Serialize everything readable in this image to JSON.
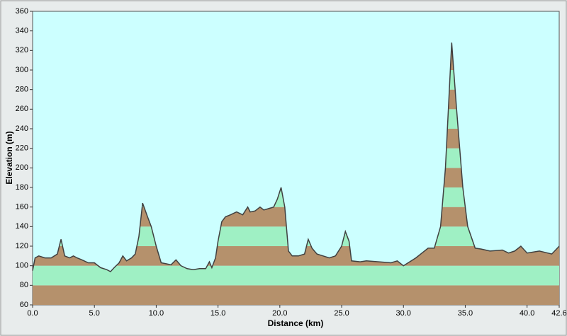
{
  "chart_data": {
    "type": "area",
    "x_label": "Distance  (km)",
    "y_label": "Elevation (m)",
    "x": [
      0.0,
      0.2,
      0.5,
      1.0,
      1.5,
      2.0,
      2.3,
      2.6,
      3.0,
      3.3,
      3.6,
      4.0,
      4.5,
      5.0,
      5.5,
      6.0,
      6.3,
      6.6,
      7.0,
      7.3,
      7.6,
      8.0,
      8.3,
      8.6,
      8.9,
      9.3,
      9.6,
      10.0,
      10.4,
      10.8,
      11.2,
      11.6,
      12.0,
      12.5,
      13.0,
      13.5,
      14.0,
      14.3,
      14.5,
      14.8,
      15.0,
      15.3,
      15.6,
      16.0,
      16.5,
      17.0,
      17.4,
      17.6,
      18.0,
      18.4,
      18.7,
      19.0,
      19.5,
      19.8,
      20.1,
      20.4,
      20.7,
      21.0,
      21.5,
      22.0,
      22.3,
      22.6,
      23.0,
      23.5,
      24.0,
      24.5,
      25.0,
      25.3,
      25.6,
      25.8,
      26.5,
      27.0,
      28.0,
      29.0,
      29.5,
      30.0,
      31.0,
      31.5,
      32.0,
      32.5,
      33.0,
      33.4,
      33.9,
      34.3,
      34.8,
      35.2,
      35.8,
      36.3,
      37.0,
      38.0,
      38.5,
      39.0,
      39.5,
      40.0,
      41.0,
      42.0,
      42.6
    ],
    "y": [
      95,
      108,
      110,
      108,
      108,
      112,
      127,
      110,
      108,
      110,
      108,
      106,
      103,
      103,
      98,
      96,
      94,
      98,
      103,
      110,
      105,
      108,
      112,
      130,
      164,
      150,
      140,
      120,
      103,
      102,
      101,
      106,
      100,
      97,
      96,
      97,
      97,
      104,
      98,
      108,
      125,
      145,
      150,
      152,
      155,
      152,
      160,
      155,
      156,
      160,
      157,
      158,
      160,
      168,
      180,
      160,
      115,
      110,
      110,
      112,
      127,
      118,
      112,
      110,
      108,
      110,
      120,
      135,
      125,
      105,
      104,
      105,
      104,
      103,
      105,
      100,
      108,
      113,
      118,
      118,
      140,
      200,
      328,
      260,
      180,
      140,
      118,
      117,
      115,
      116,
      113,
      115,
      120,
      113,
      115,
      112,
      120
    ],
    "xlim": [
      0,
      42.6
    ],
    "ylim": [
      60,
      360
    ],
    "xticks": [
      {
        "value": 0,
        "label": "0.0"
      },
      {
        "value": 5,
        "label": "5.0"
      },
      {
        "value": 10,
        "label": "10.0"
      },
      {
        "value": 15,
        "label": "15.0"
      },
      {
        "value": 20,
        "label": "20.0"
      },
      {
        "value": 25,
        "label": "25.0"
      },
      {
        "value": 30,
        "label": "30.0"
      },
      {
        "value": 35,
        "label": "35.0"
      },
      {
        "value": 40,
        "label": "40.0"
      },
      {
        "value": 42.6,
        "label": "42.6"
      }
    ],
    "yticks": [
      60,
      80,
      100,
      120,
      140,
      160,
      180,
      200,
      220,
      240,
      260,
      280,
      300,
      320,
      340,
      360
    ],
    "band_colors": [
      "#b5916c",
      "#9ff0c4"
    ],
    "line_color": "#404040",
    "background": "#ccffff"
  }
}
